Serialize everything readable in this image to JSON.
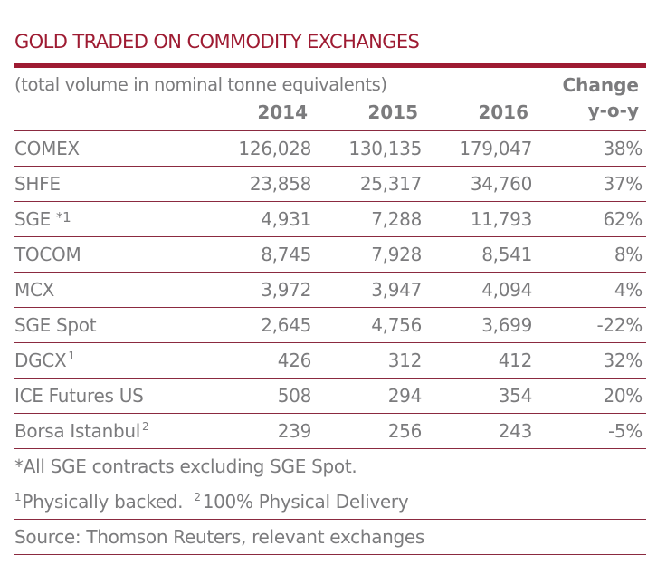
{
  "title": "GOLD TRADED ON COMMODITY EXCHANGES",
  "subtitle": "(total volume in nominal tonne equivalents)",
  "columns": [
    "2014",
    "2015",
    "2016"
  ],
  "change_header": [
    "Change",
    "y-o-y"
  ],
  "rows": [
    {
      "name": "COMEX",
      "sup": "",
      "v2014": "126,028",
      "v2015": "130,135",
      "v2016": "179,047",
      "change": "38%"
    },
    {
      "name": "SHFE",
      "sup": "",
      "v2014": "23,858",
      "v2015": "25,317",
      "v2016": "34,760",
      "change": "37%"
    },
    {
      "name": "SGE",
      "sup": "*1",
      "v2014": "4,931",
      "v2015": "7,288",
      "v2016": "11,793",
      "change": "62%"
    },
    {
      "name": "TOCOM",
      "sup": "",
      "v2014": "8,745",
      "v2015": "7,928",
      "v2016": "8,541",
      "change": "8%"
    },
    {
      "name": "MCX",
      "sup": "",
      "v2014": "3,972",
      "v2015": "3,947",
      "v2016": "4,094",
      "change": "4%"
    },
    {
      "name": "SGE Spot",
      "sup": "",
      "v2014": "2,645",
      "v2015": "4,756",
      "v2016": "3,699",
      "change": "-22%"
    },
    {
      "name": "DGCX",
      "sup": "1",
      "v2014": "426",
      "v2015": "312",
      "v2016": "412",
      "change": "32%"
    },
    {
      "name": "ICE Futures US",
      "sup": "",
      "v2014": "508",
      "v2015": "294",
      "v2016": "354",
      "change": "20%"
    },
    {
      "name": "Borsa Istanbul",
      "sup": "2",
      "v2014": "239",
      "v2015": "256",
      "v2016": "243",
      "change": "-5%"
    }
  ],
  "notes": {
    "sge": "*All SGE contracts excluding SGE Spot.",
    "sup1": "1",
    "physically_backed": "Physically backed.",
    "sup2": "2",
    "physical_delivery": "100% Physical Delivery",
    "source": "Source: Thomson Reuters, relevant exchanges"
  },
  "colors": {
    "accent": "#9e1b32",
    "text": "#7b7b7d"
  }
}
